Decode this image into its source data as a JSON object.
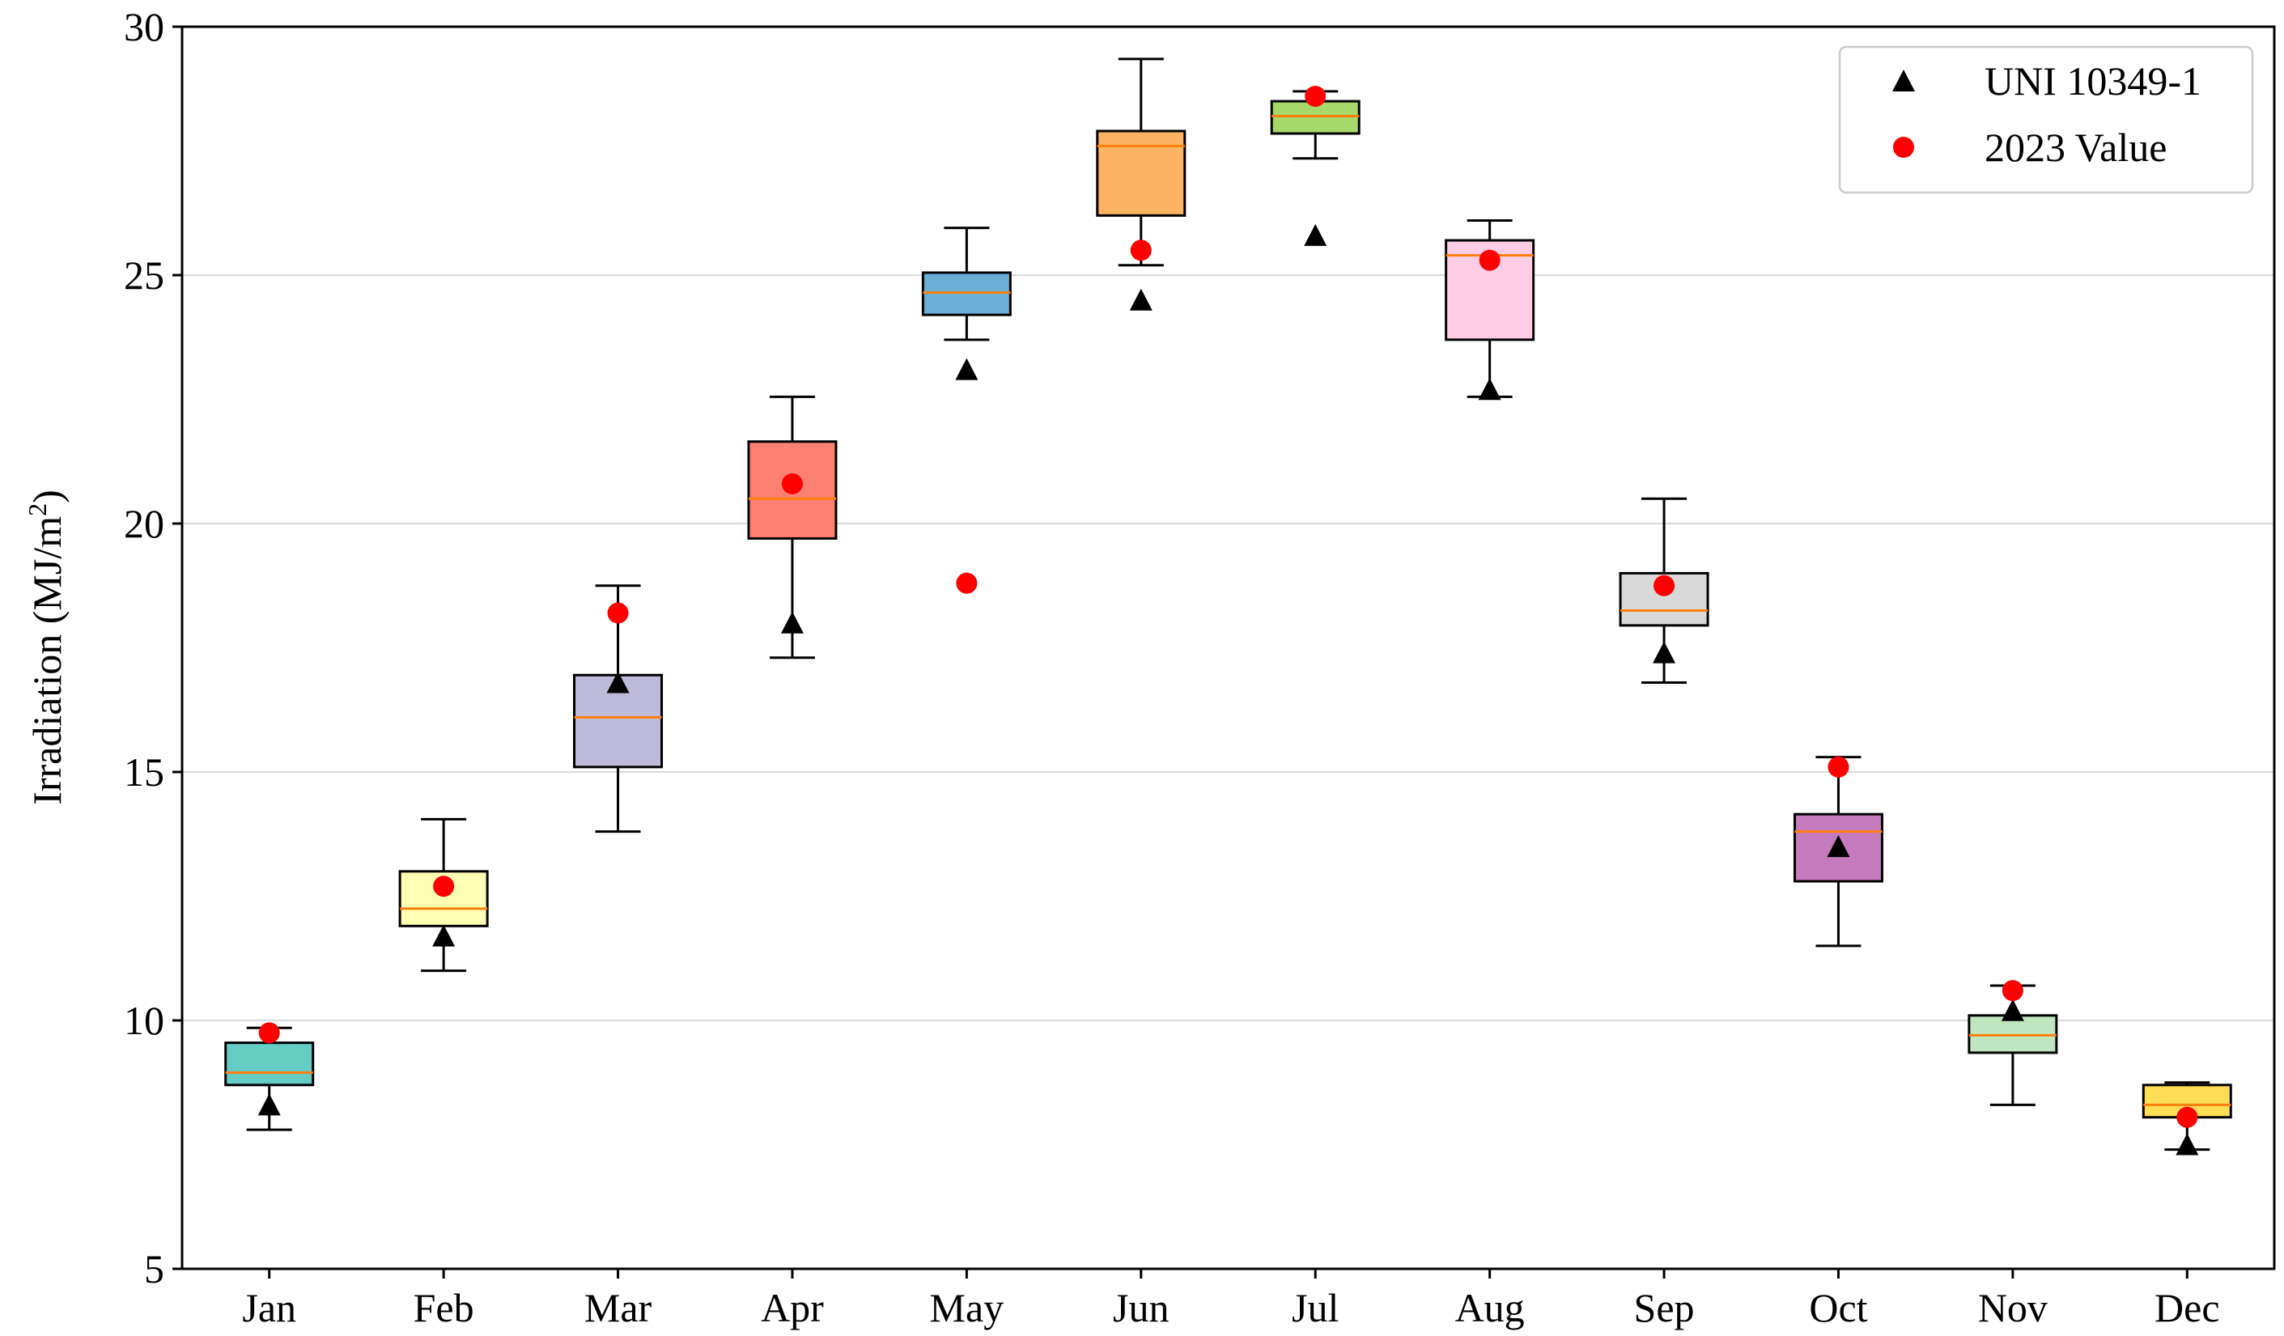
{
  "chart_data": {
    "type": "box",
    "title": "",
    "xlabel": "",
    "ylabel": "Irradiation (MJ/m",
    "ylabel_sup": "2",
    "ylabel_close": ")",
    "ylim": [
      5,
      30
    ],
    "yticks": [
      5,
      10,
      15,
      20,
      25,
      30
    ],
    "grid": "horizontal",
    "categories": [
      "Jan",
      "Feb",
      "Mar",
      "Apr",
      "May",
      "Jun",
      "Jul",
      "Aug",
      "Sep",
      "Oct",
      "Nov",
      "Dec"
    ],
    "boxes": [
      {
        "month": "Jan",
        "whisker_low": 7.8,
        "q1": 8.7,
        "median": 8.95,
        "q3": 9.55,
        "whisker_high": 9.85,
        "color": "#66cdc4"
      },
      {
        "month": "Feb",
        "whisker_low": 11.0,
        "q1": 11.9,
        "median": 12.25,
        "q3": 13.0,
        "whisker_high": 14.05,
        "color": "#ffffb3"
      },
      {
        "month": "Mar",
        "whisker_low": 13.8,
        "q1": 15.1,
        "median": 16.1,
        "q3": 16.95,
        "whisker_high": 18.75,
        "color": "#bebada"
      },
      {
        "month": "Apr",
        "whisker_low": 17.3,
        "q1": 19.7,
        "median": 20.5,
        "q3": 21.65,
        "whisker_high": 22.55,
        "color": "#fb8072"
      },
      {
        "month": "May",
        "whisker_low": 23.7,
        "q1": 24.2,
        "median": 24.65,
        "q3": 25.05,
        "whisker_high": 25.95,
        "color": "#6baed6"
      },
      {
        "month": "Jun",
        "whisker_low": 25.2,
        "q1": 26.2,
        "median": 27.6,
        "q3": 27.9,
        "whisker_high": 29.35,
        "color": "#fdb462"
      },
      {
        "month": "Jul",
        "whisker_low": 27.35,
        "q1": 27.85,
        "median": 28.2,
        "q3": 28.5,
        "whisker_high": 28.7,
        "color": "#a6d96a"
      },
      {
        "month": "Aug",
        "whisker_low": 22.55,
        "q1": 23.7,
        "median": 25.4,
        "q3": 25.7,
        "whisker_high": 26.1,
        "color": "#fccde5"
      },
      {
        "month": "Sep",
        "whisker_low": 16.8,
        "q1": 17.95,
        "median": 18.25,
        "q3": 19.0,
        "whisker_high": 20.5,
        "color": "#d9d9d9"
      },
      {
        "month": "Oct",
        "whisker_low": 11.5,
        "q1": 12.8,
        "median": 13.8,
        "q3": 14.15,
        "whisker_high": 15.3,
        "color": "#c77bbf"
      },
      {
        "month": "Nov",
        "whisker_low": 8.3,
        "q1": 9.35,
        "median": 9.7,
        "q3": 10.1,
        "whisker_high": 10.7,
        "color": "#bfe6bf"
      },
      {
        "month": "Dec",
        "whisker_low": 7.4,
        "q1": 8.05,
        "median": 8.3,
        "q3": 8.7,
        "whisker_high": 8.75,
        "color": "#ffdd55"
      }
    ],
    "series": [
      {
        "name": "UNI 10349-1",
        "marker": "triangle",
        "color": "#000000",
        "values": [
          8.3,
          11.7,
          16.8,
          18.0,
          23.1,
          24.5,
          25.8,
          22.7,
          17.4,
          13.5,
          10.2,
          7.5
        ]
      },
      {
        "name": "2023 Value",
        "marker": "circle",
        "color": "#ff0000",
        "values": [
          9.75,
          12.7,
          18.2,
          20.8,
          18.8,
          25.5,
          28.6,
          25.3,
          18.75,
          15.1,
          10.6,
          8.05
        ]
      }
    ],
    "median_color": "#ff7f0e",
    "legend_position": "top-right"
  }
}
